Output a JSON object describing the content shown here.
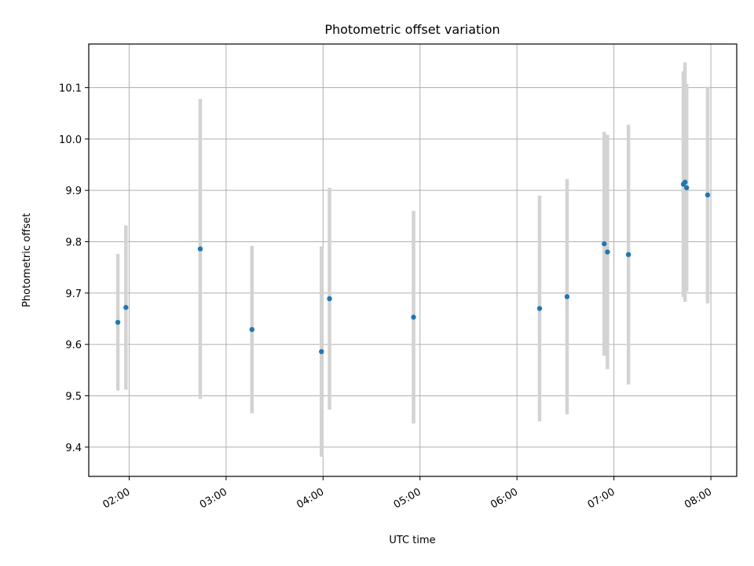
{
  "chart_data": {
    "type": "scatter",
    "title": "Photometric offset variation",
    "xlabel": "UTC time",
    "ylabel": "Photometric offset",
    "x_ticks": [
      "02:00",
      "03:00",
      "04:00",
      "05:00",
      "06:00",
      "07:00",
      "08:00"
    ],
    "y_ticks": [
      "9.4",
      "9.5",
      "9.6",
      "9.7",
      "9.8",
      "9.9",
      "10.0",
      "10.1"
    ],
    "xlim": [
      "01:35",
      "08:16"
    ],
    "ylim": [
      9.343,
      10.185
    ],
    "grid": true,
    "colors": {
      "point": "#1f77b4",
      "errorbar": "#d3d3d3"
    },
    "points": [
      {
        "x": "01:53",
        "y": 9.643,
        "err": 0.133
      },
      {
        "x": "01:58",
        "y": 9.672,
        "err": 0.16
      },
      {
        "x": "02:44",
        "y": 9.786,
        "err": 0.292
      },
      {
        "x": "03:16",
        "y": 9.629,
        "err": 0.163
      },
      {
        "x": "03:59",
        "y": 9.586,
        "err": 0.205
      },
      {
        "x": "04:04",
        "y": 9.689,
        "err": 0.216
      },
      {
        "x": "04:56",
        "y": 9.653,
        "err": 0.207
      },
      {
        "x": "06:14",
        "y": 9.67,
        "err": 0.22
      },
      {
        "x": "06:31",
        "y": 9.693,
        "err": 0.229
      },
      {
        "x": "06:54",
        "y": 9.796,
        "err": 0.218
      },
      {
        "x": "06:56",
        "y": 9.78,
        "err": 0.228
      },
      {
        "x": "07:09",
        "y": 9.775,
        "err": 0.253
      },
      {
        "x": "07:43",
        "y": 9.912,
        "err": 0.22
      },
      {
        "x": "07:44",
        "y": 9.916,
        "err": 0.233
      },
      {
        "x": "07:45",
        "y": 9.905,
        "err": 0.202
      },
      {
        "x": "07:58",
        "y": 9.891,
        "err": 0.211
      }
    ]
  }
}
